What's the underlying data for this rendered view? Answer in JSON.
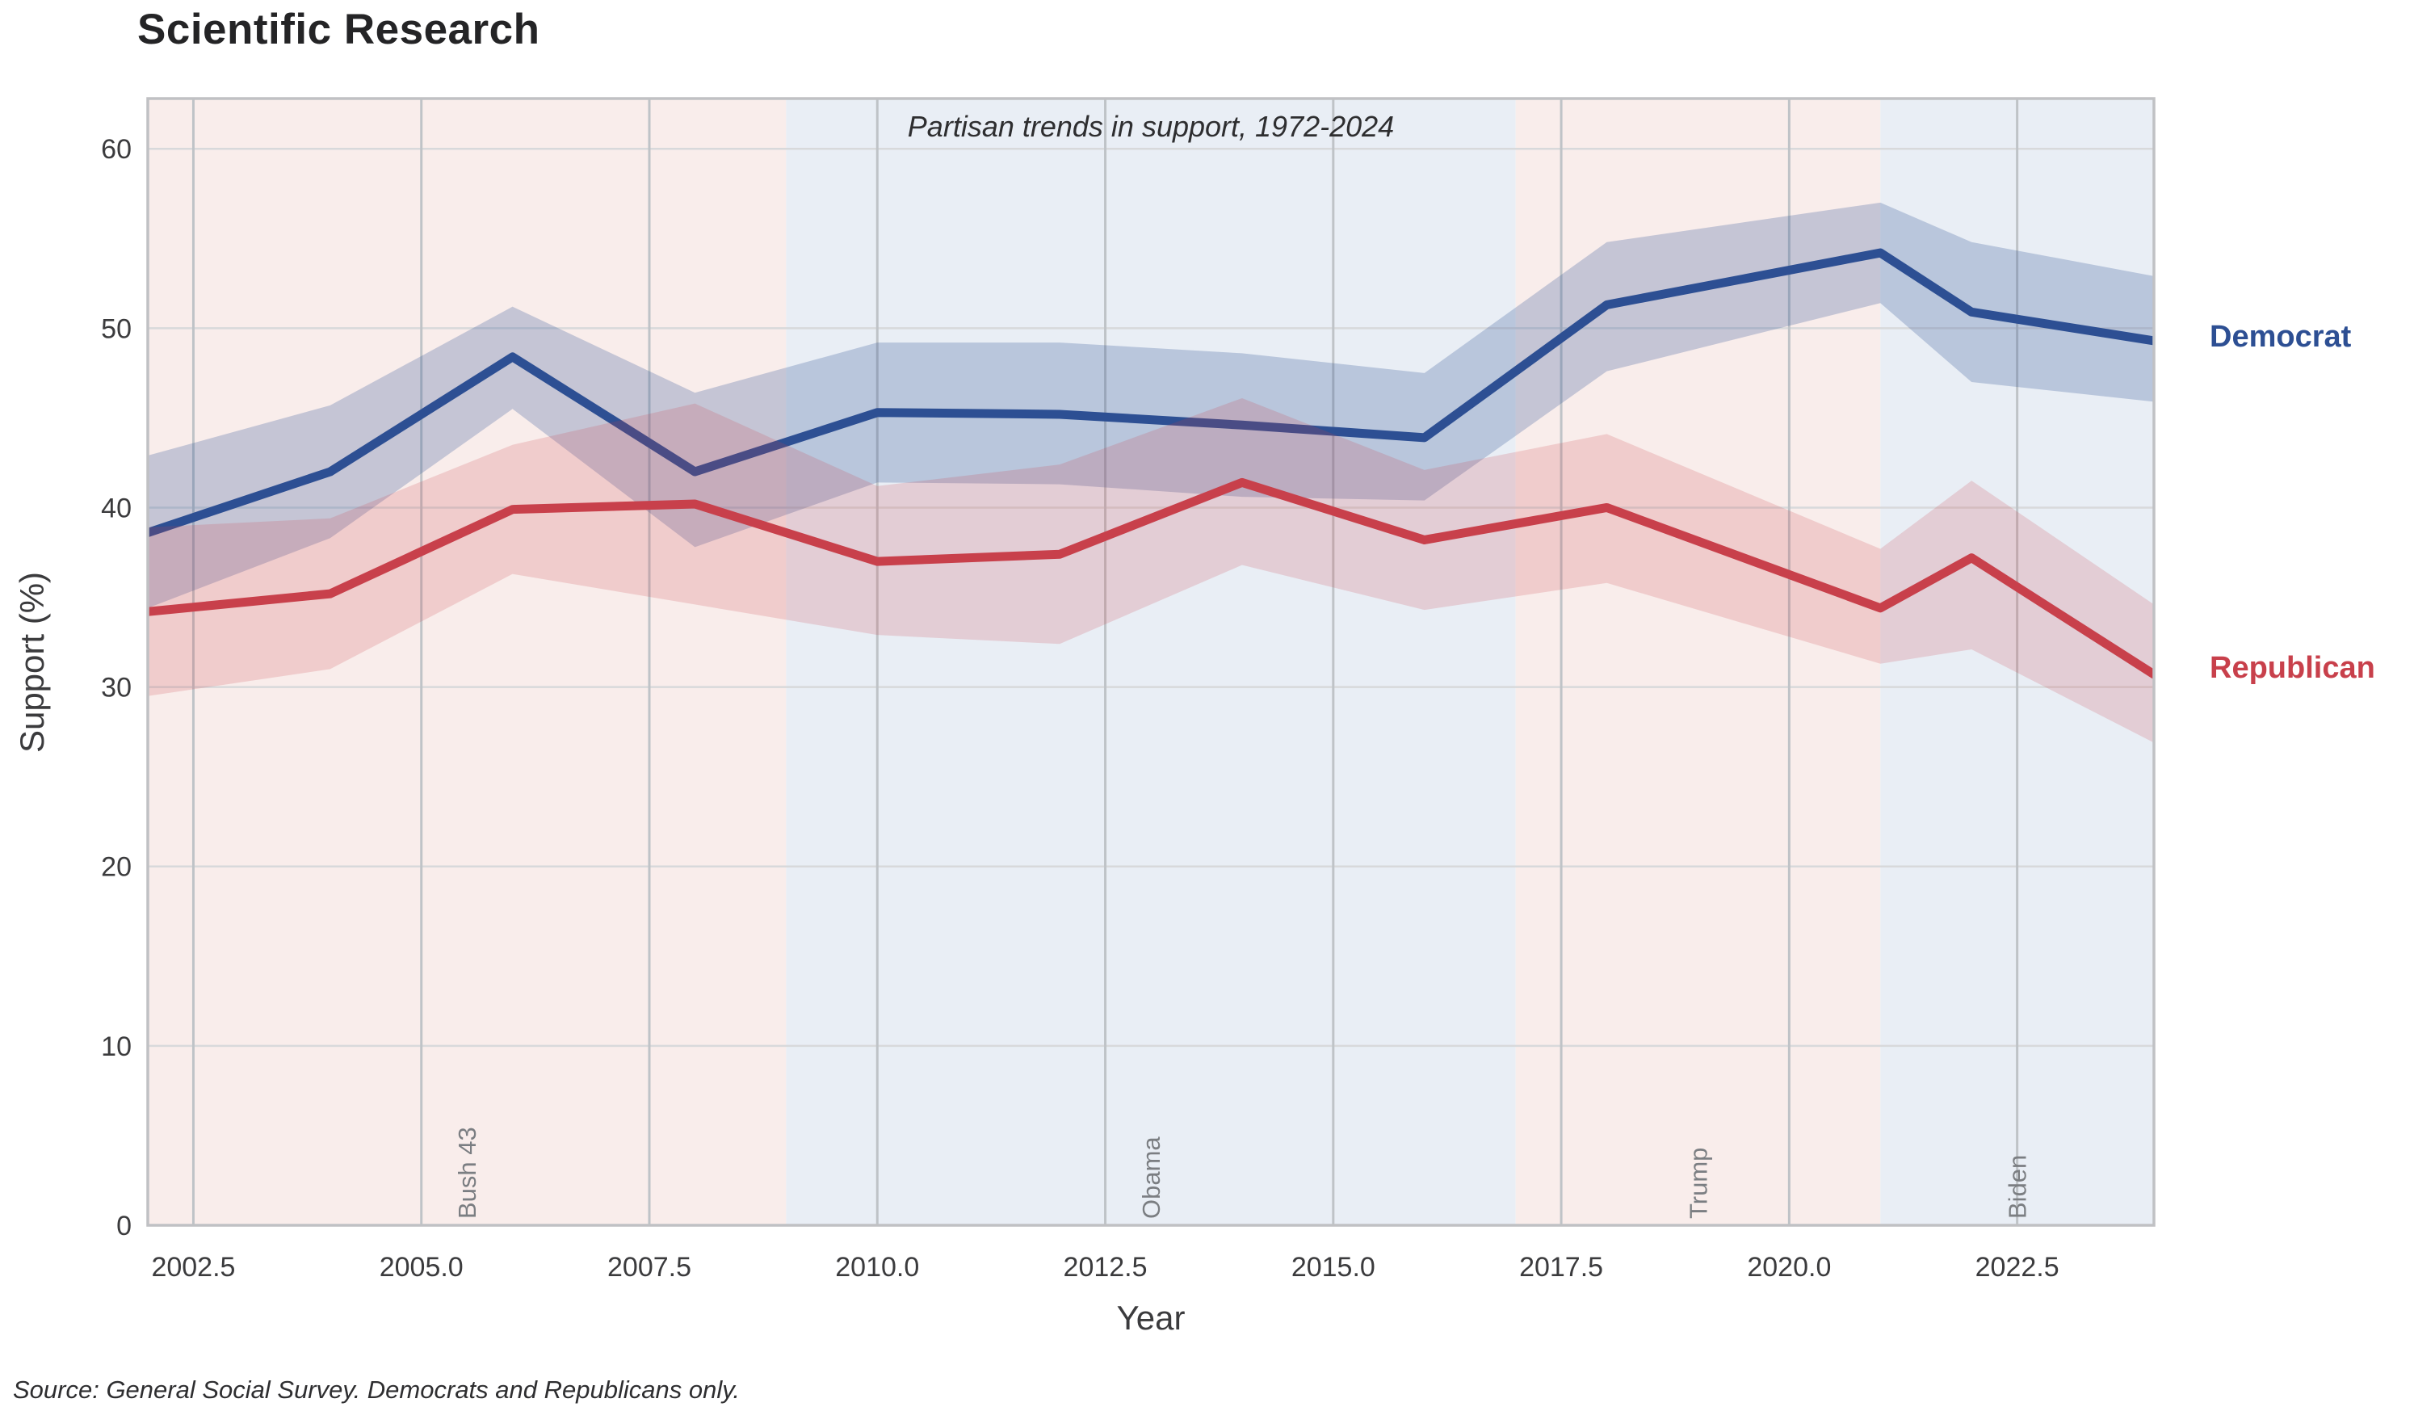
{
  "page": {
    "source_note": "Source: General Social Survey. Democrats and Republicans only."
  },
  "chart_data": {
    "type": "line",
    "title": "Scientific Research",
    "subtitle": "Partisan trends in support, 1972-2024",
    "xlabel": "Year",
    "ylabel": "Support (%)",
    "xlim": [
      2002,
      2024
    ],
    "ylim": [
      0,
      62.8
    ],
    "grid": true,
    "legend_position": "right-of-plot",
    "x": [
      2002,
      2004,
      2006,
      2008,
      2010,
      2012,
      2014,
      2016,
      2018,
      2021,
      2022,
      2024
    ],
    "series": [
      {
        "name": "Democrat",
        "color": "#2d4f93",
        "band_opacity": 0.25,
        "values": [
          38.6,
          42.0,
          48.4,
          42.0,
          45.3,
          45.2,
          44.6,
          43.9,
          51.3,
          54.2,
          50.9,
          49.3
        ],
        "band_lo": [
          34.4,
          38.3,
          45.5,
          37.8,
          41.4,
          41.3,
          40.6,
          40.4,
          47.6,
          51.4,
          47.0,
          45.9
        ],
        "band_hi": [
          42.9,
          45.7,
          51.2,
          46.4,
          49.2,
          49.2,
          48.6,
          47.5,
          54.8,
          57.0,
          54.8,
          52.9
        ]
      },
      {
        "name": "Republican",
        "color": "#c8404b",
        "band_opacity": 0.19,
        "values": [
          34.2,
          35.2,
          39.9,
          40.2,
          37.0,
          37.4,
          41.4,
          38.2,
          40.0,
          34.4,
          37.2,
          30.7
        ],
        "band_lo": [
          29.5,
          31.0,
          36.3,
          34.6,
          32.9,
          32.4,
          36.8,
          34.3,
          35.8,
          31.3,
          32.1,
          26.9
        ],
        "band_hi": [
          38.9,
          39.4,
          43.5,
          45.8,
          41.2,
          42.4,
          46.1,
          42.1,
          44.1,
          37.7,
          41.5,
          34.6
        ]
      }
    ],
    "xticks": {
      "values": [
        2002.5,
        2005.0,
        2007.5,
        2010.0,
        2012.5,
        2015.0,
        2017.5,
        2020.0,
        2022.5
      ],
      "labels": [
        "2002.5",
        "2005.0",
        "2007.5",
        "2010.0",
        "2012.5",
        "2015.0",
        "2017.5",
        "2020.0",
        "2022.5"
      ]
    },
    "yticks": {
      "values": [
        0,
        10,
        20,
        30,
        40,
        50,
        60
      ],
      "labels": [
        "0",
        "10",
        "20",
        "30",
        "40",
        "50",
        "60"
      ]
    },
    "eras": [
      {
        "label": "Bush 43",
        "start": 2002,
        "end": 2009,
        "party": "republican"
      },
      {
        "label": "Obama",
        "start": 2009,
        "end": 2017,
        "party": "democrat"
      },
      {
        "label": "Trump",
        "start": 2017,
        "end": 2021,
        "party": "republican"
      },
      {
        "label": "Biden",
        "start": 2021,
        "end": 2024,
        "party": "democrat"
      }
    ],
    "era_colors": {
      "republican": "#f9edeb",
      "democrat": "#e9eef5"
    },
    "era_label_color": "#7b7e82",
    "legend": {
      "democrat": "Democrat",
      "republican": "Republican"
    }
  }
}
